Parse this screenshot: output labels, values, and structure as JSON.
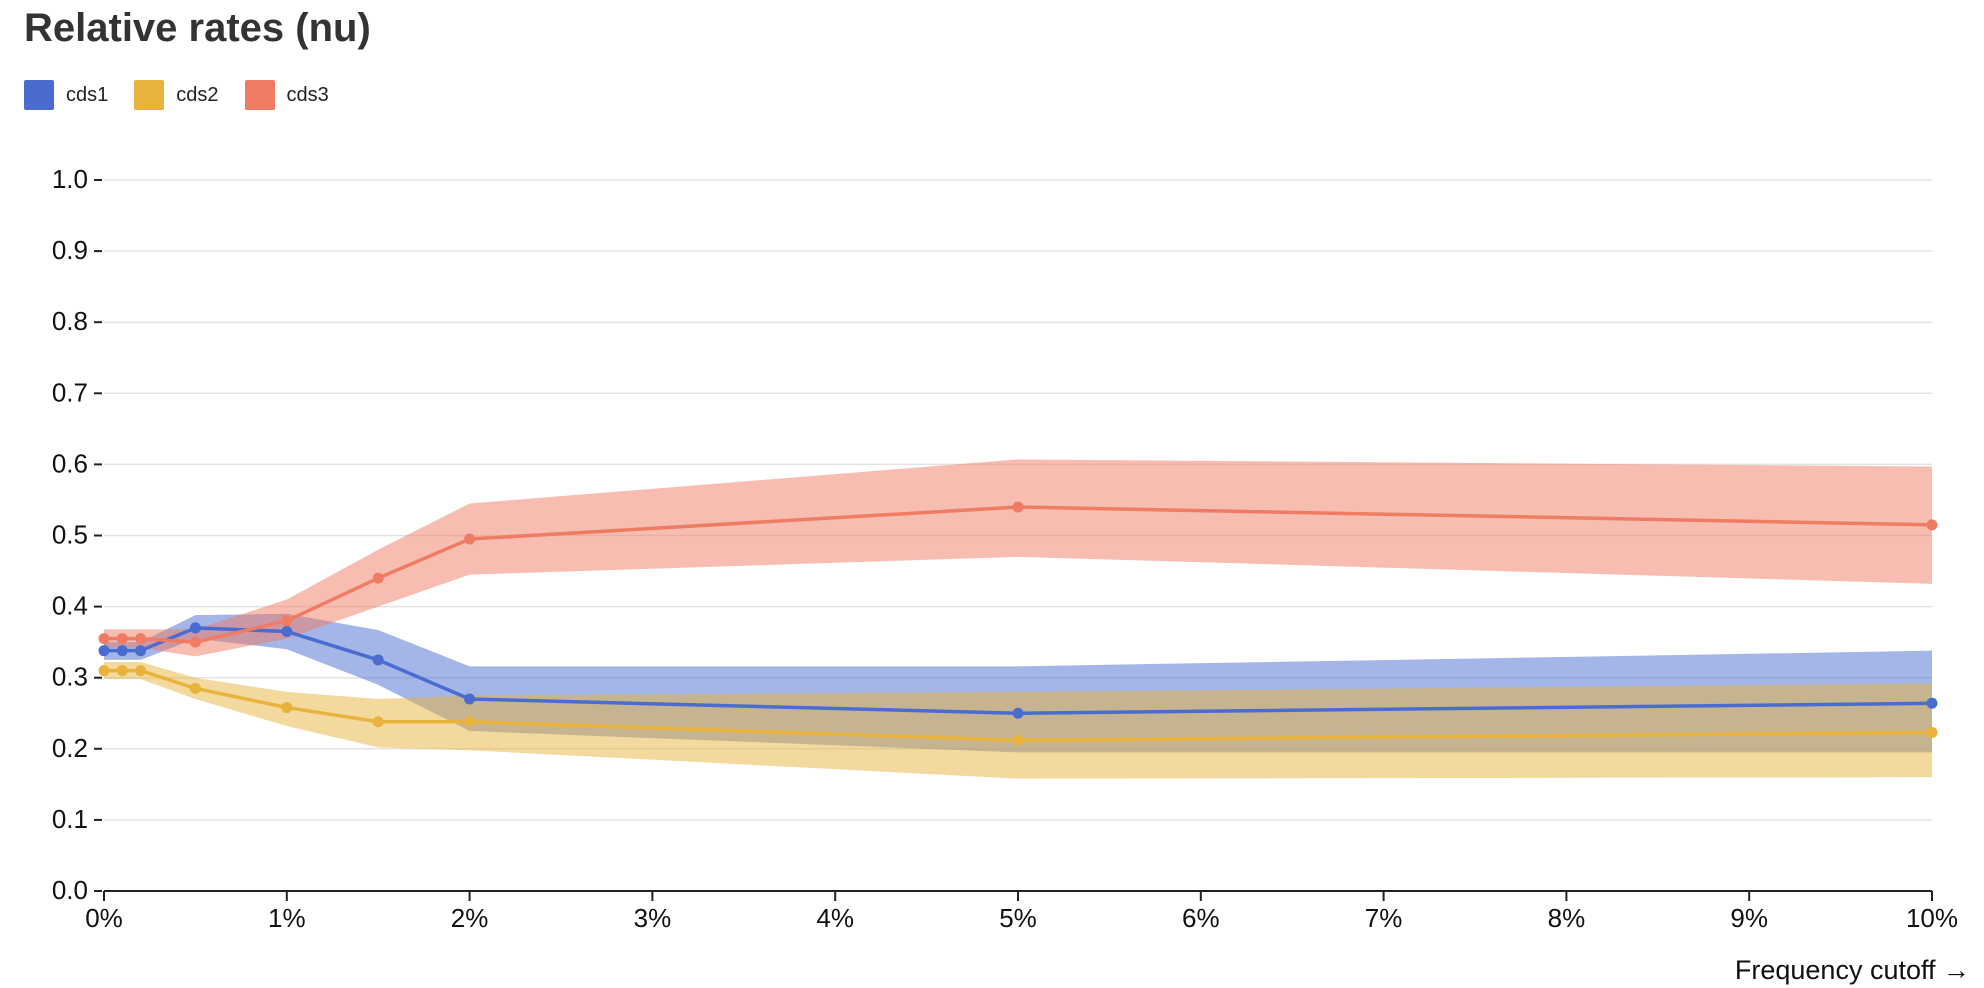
{
  "chart_data": {
    "type": "line",
    "title": "Relative rates (nu)",
    "xlabel": "Frequency cutoff →",
    "ylabel": "",
    "x": [
      0,
      0.1,
      0.2,
      0.5,
      1,
      1.5,
      2,
      5,
      10
    ],
    "xlim": [
      0,
      10
    ],
    "ylim": [
      0,
      1
    ],
    "x_ticks": [
      "0%",
      "1%",
      "2%",
      "3%",
      "4%",
      "5%",
      "6%",
      "7%",
      "8%",
      "9%",
      "10%"
    ],
    "y_ticks": [
      "0.0",
      "0.1",
      "0.2",
      "0.3",
      "0.4",
      "0.5",
      "0.6",
      "0.7",
      "0.8",
      "0.9",
      "1.0"
    ],
    "grid": true,
    "legend_placement": "top-left",
    "series": [
      {
        "name": "cds1",
        "color": "#4a6bd0",
        "values": [
          0.338,
          0.338,
          0.338,
          0.37,
          0.365,
          0.325,
          0.27,
          0.25,
          0.264
        ],
        "lower": [
          0.325,
          0.325,
          0.325,
          0.355,
          0.34,
          0.29,
          0.225,
          0.195,
          0.195
        ],
        "upper": [
          0.35,
          0.35,
          0.35,
          0.388,
          0.39,
          0.367,
          0.316,
          0.316,
          0.338
        ]
      },
      {
        "name": "cds2",
        "color": "#e8b33c",
        "values": [
          0.31,
          0.31,
          0.31,
          0.285,
          0.258,
          0.238,
          0.238,
          0.212,
          0.223
        ],
        "lower": [
          0.298,
          0.298,
          0.298,
          0.27,
          0.232,
          0.202,
          0.198,
          0.158,
          0.16
        ],
        "upper": [
          0.322,
          0.322,
          0.322,
          0.3,
          0.28,
          0.27,
          0.275,
          0.28,
          0.292
        ]
      },
      {
        "name": "cds3",
        "color": "#f07b63",
        "values": [
          0.355,
          0.355,
          0.355,
          0.35,
          0.38,
          0.44,
          0.495,
          0.54,
          0.515
        ],
        "lower": [
          0.342,
          0.342,
          0.342,
          0.33,
          0.355,
          0.4,
          0.445,
          0.47,
          0.432
        ],
        "upper": [
          0.368,
          0.368,
          0.368,
          0.368,
          0.41,
          0.48,
          0.545,
          0.607,
          0.597
        ]
      }
    ]
  }
}
